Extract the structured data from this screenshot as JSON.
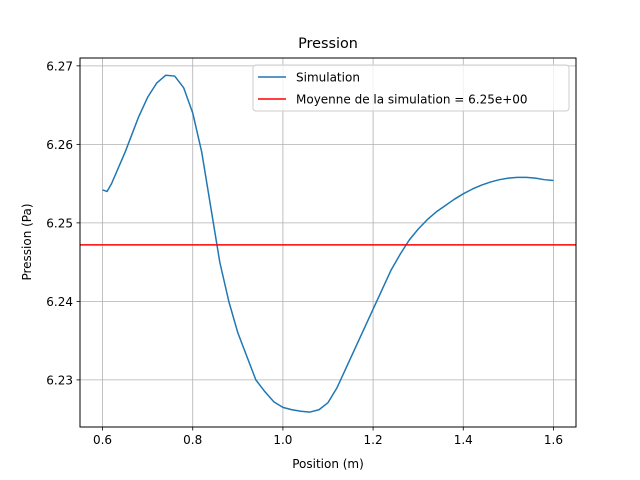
{
  "chart_data": {
    "type": "line",
    "title": "Pression",
    "xlabel": "Position (m)",
    "ylabel": "Pression (Pa)",
    "xlim": [
      0.55,
      1.65
    ],
    "ylim": [
      6.224,
      6.271
    ],
    "xticks": [
      0.6,
      0.8,
      1.0,
      1.2,
      1.4,
      1.6
    ],
    "xtick_labels": [
      "0.6",
      "0.8",
      "1.0",
      "1.2",
      "1.4",
      "1.6"
    ],
    "yticks": [
      6.23,
      6.24,
      6.25,
      6.26,
      6.27
    ],
    "ytick_labels": [
      "6.23",
      "6.24",
      "6.25",
      "6.26",
      "6.27"
    ],
    "grid": true,
    "legend_position": "top-right",
    "series": [
      {
        "name": "Simulation",
        "color": "#1f77b4",
        "x": [
          0.6,
          0.61,
          0.62,
          0.65,
          0.68,
          0.7,
          0.72,
          0.74,
          0.76,
          0.78,
          0.8,
          0.82,
          0.84,
          0.86,
          0.88,
          0.9,
          0.92,
          0.94,
          0.96,
          0.98,
          1.0,
          1.02,
          1.04,
          1.06,
          1.08,
          1.1,
          1.12,
          1.14,
          1.16,
          1.18,
          1.2,
          1.22,
          1.24,
          1.26,
          1.28,
          1.3,
          1.32,
          1.34,
          1.36,
          1.38,
          1.4,
          1.42,
          1.44,
          1.46,
          1.48,
          1.5,
          1.52,
          1.54,
          1.56,
          1.58,
          1.6
        ],
        "values": [
          6.2542,
          6.254,
          6.255,
          6.259,
          6.2635,
          6.266,
          6.2678,
          6.2688,
          6.2687,
          6.2672,
          6.264,
          6.259,
          6.252,
          6.245,
          6.24,
          6.236,
          6.233,
          6.23,
          6.2285,
          6.2272,
          6.2265,
          6.2262,
          6.226,
          6.2259,
          6.2262,
          6.2271,
          6.229,
          6.2315,
          6.234,
          6.2365,
          6.239,
          6.2415,
          6.244,
          6.246,
          6.2478,
          6.2492,
          6.2504,
          6.2514,
          6.2522,
          6.253,
          6.2537,
          6.2543,
          6.2548,
          6.2552,
          6.2555,
          6.2557,
          6.2558,
          6.2558,
          6.2557,
          6.2555,
          6.2554
        ]
      },
      {
        "name": "Moyenne de la simulation = 6.25e+00",
        "color": "#ff0000",
        "type": "hline",
        "y": 6.2472
      }
    ]
  }
}
